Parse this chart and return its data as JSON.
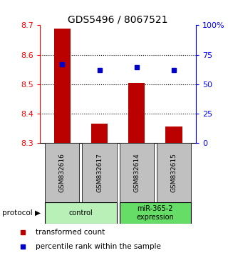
{
  "title": "GDS5496 / 8067521",
  "samples": [
    "GSM832616",
    "GSM832617",
    "GSM832614",
    "GSM832615"
  ],
  "red_values": [
    8.69,
    8.365,
    8.505,
    8.357
  ],
  "blue_values": [
    8.568,
    8.548,
    8.558,
    8.548
  ],
  "ylim": [
    8.3,
    8.7
  ],
  "yticks_left": [
    8.3,
    8.4,
    8.5,
    8.6,
    8.7
  ],
  "ytick_left_labels": [
    "8.3",
    "8.4",
    "8.5",
    "8.6",
    "8.7"
  ],
  "yticks_right_pct": [
    0,
    25,
    50,
    75,
    100
  ],
  "ytick_right_labels": [
    "0",
    "25",
    "50",
    "75",
    "100%"
  ],
  "groups": [
    {
      "label": "control",
      "indices": [
        0,
        1
      ],
      "color": "#b8f0b8"
    },
    {
      "label": "miR-365-2\nexpression",
      "indices": [
        2,
        3
      ],
      "color": "#66dd66"
    }
  ],
  "bar_color": "#bb0000",
  "dot_color": "#0000cc",
  "sample_box_color": "#c0c0c0",
  "sample_box_edge": "#333333",
  "title_fontsize": 10,
  "tick_fontsize": 8,
  "legend_fontsize": 7.5
}
